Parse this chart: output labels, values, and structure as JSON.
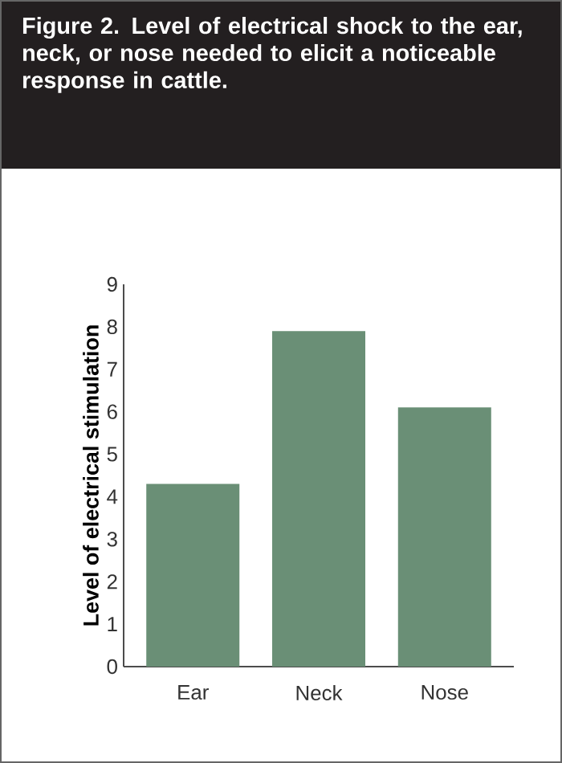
{
  "chart_data": {
    "type": "bar",
    "title": "Figure 2. Level of electrical shock to the ear, neck, or nose needed to elicit a noticeable response in cattle.",
    "ylabel": "Level of electrical stimulation",
    "categories": [
      "Ear",
      "Neck",
      "Nose"
    ],
    "values": [
      4.3,
      7.9,
      6.1
    ],
    "color": "#6a8f76",
    "ylim": [
      0,
      9
    ],
    "yticks": [
      0,
      1,
      2,
      3,
      4,
      5,
      6,
      7,
      8,
      9
    ]
  }
}
